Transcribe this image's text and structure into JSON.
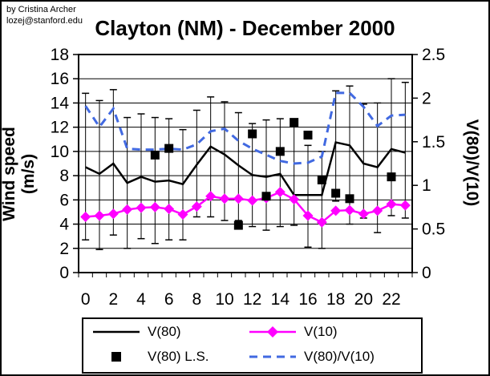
{
  "byline": {
    "line1": "by Cristina Archer",
    "line2": "lozej@stanford.edu"
  },
  "title": "Clayton (NM) - December 2000",
  "colors": {
    "v80": "#000000",
    "v10": "#FF00FF",
    "v80_ls": "#000000",
    "ratio": "#4169E1",
    "grid": "#000000",
    "background": "#FFFFFF"
  },
  "legend": {
    "items": [
      {
        "label": "V(80)"
      },
      {
        "label": "V(10)"
      },
      {
        "label": "V(80) L.S."
      },
      {
        "label": "V(80)/V(10)"
      }
    ]
  },
  "chart_data": {
    "type": "line",
    "title": "Clayton (NM) - December 2000",
    "categories": [
      0,
      1,
      2,
      3,
      4,
      5,
      6,
      7,
      8,
      9,
      10,
      11,
      12,
      13,
      14,
      15,
      16,
      17,
      18,
      19,
      20,
      21,
      22,
      23
    ],
    "x_axis": {
      "tick_label_every": 2,
      "labels": [
        "0",
        "2",
        "4",
        "6",
        "8",
        "10",
        "12",
        "14",
        "16",
        "18",
        "20",
        "22"
      ]
    },
    "left_axis": {
      "title": "Wind speed (m/s)",
      "min": 0,
      "max": 18,
      "step": 2
    },
    "right_axis": {
      "title": "V(80)/V(10)",
      "min": 0,
      "max": 2.5,
      "step": 0.5,
      "labels": [
        "0",
        "0.5",
        "1",
        "1.5",
        "2",
        "2.5"
      ]
    },
    "grid": "horizontal",
    "legend_position": "bottom",
    "series": [
      {
        "name": "V(80)/V(10)",
        "axis": "right",
        "kind": "dashed-line",
        "color": "#4169E1",
        "values": [
          1.91,
          1.67,
          1.88,
          1.42,
          1.41,
          1.41,
          1.42,
          1.41,
          1.47,
          1.62,
          1.65,
          1.51,
          1.42,
          1.35,
          1.28,
          1.25,
          1.26,
          1.33,
          2.06,
          2.06,
          1.9,
          1.68,
          1.8,
          1.81
        ]
      },
      {
        "name": "V(80)",
        "axis": "left",
        "kind": "line",
        "color": "#000000",
        "values": [
          8.7,
          8.15,
          9.0,
          7.4,
          7.9,
          7.5,
          7.6,
          7.3,
          8.9,
          10.4,
          9.75,
          8.85,
          8.05,
          7.9,
          8.15,
          6.4,
          6.4,
          6.4,
          10.75,
          10.5,
          9.0,
          8.7,
          10.2,
          9.9
        ]
      },
      {
        "name": "V(10)",
        "axis": "left",
        "kind": "line-diamond",
        "color": "#FF00FF",
        "values": [
          4.6,
          4.7,
          4.85,
          5.2,
          5.35,
          5.4,
          5.25,
          4.8,
          5.45,
          6.3,
          6.1,
          6.1,
          5.95,
          6.15,
          6.65,
          6.05,
          4.7,
          4.15,
          5.1,
          5.15,
          4.85,
          5.1,
          5.65,
          5.55
        ]
      },
      {
        "name": "V(80) L.S.",
        "axis": "left",
        "kind": "scatter-square",
        "color": "#000000",
        "points": [
          [
            5,
            9.7
          ],
          [
            6,
            10.25
          ],
          [
            11,
            3.9
          ],
          [
            12,
            11.45
          ],
          [
            13,
            6.3
          ],
          [
            14,
            10.0
          ],
          [
            15,
            12.4
          ],
          [
            16,
            11.35
          ],
          [
            17,
            7.65
          ],
          [
            18,
            6.55
          ],
          [
            19,
            6.1
          ],
          [
            22,
            7.9
          ]
        ]
      }
    ],
    "error_bars": {
      "series": "V(80)",
      "lo": [
        2.7,
        1.9,
        3.1,
        2.0,
        2.8,
        2.4,
        2.7,
        2.7,
        4.6,
        4.6,
        4.3,
        4.3,
        3.8,
        3.5,
        3.8,
        3.9,
        2.1,
        2.0,
        5.9,
        4.0,
        4.5,
        3.3,
        4.7,
        4.5
      ],
      "hi": [
        14.8,
        14.2,
        15.1,
        12.8,
        13.1,
        12.8,
        12.7,
        11.8,
        13.4,
        14.5,
        14.1,
        13.2,
        12.3,
        12.6,
        12.7,
        12.4,
        10.5,
        10.0,
        15.0,
        15.4,
        13.9,
        14.0,
        16.0,
        15.7
      ]
    }
  }
}
